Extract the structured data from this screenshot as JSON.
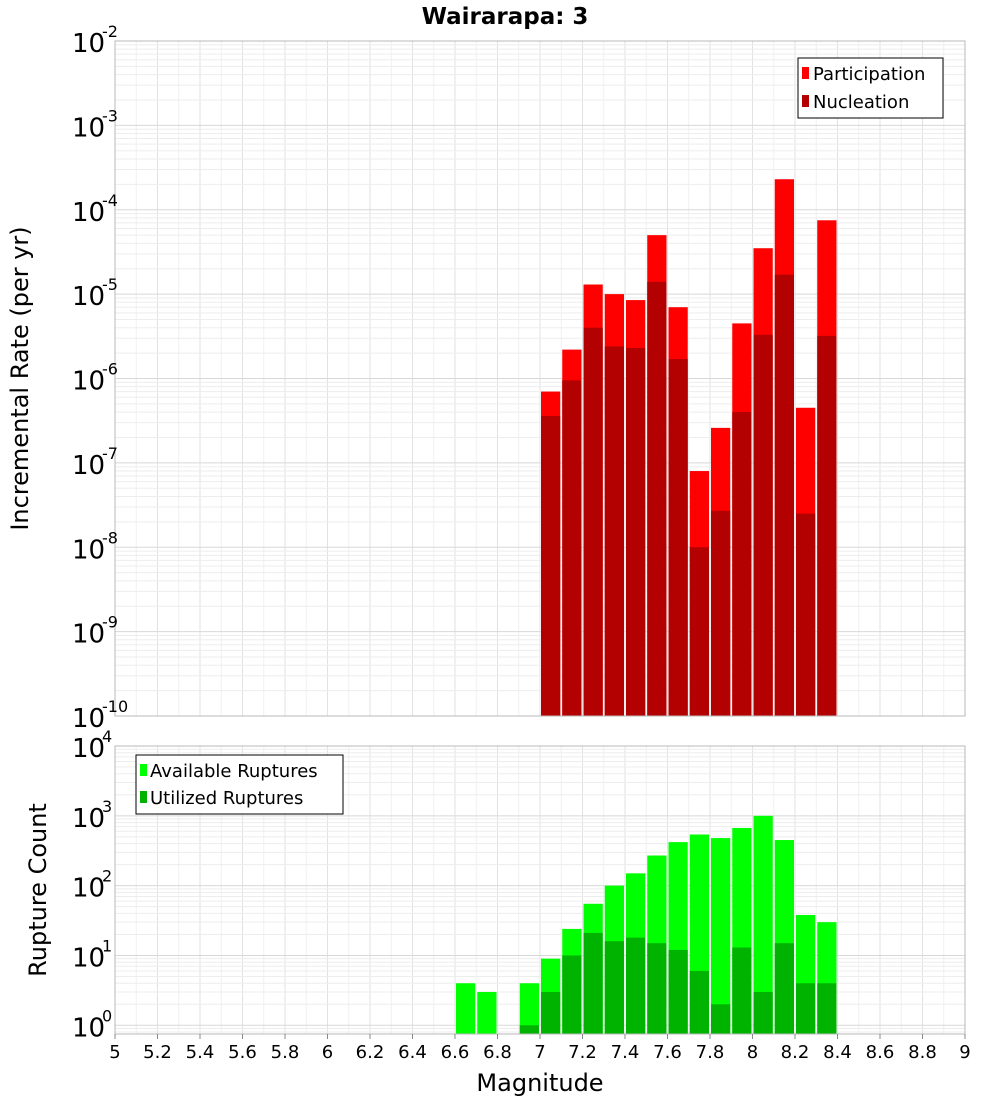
{
  "chart_data": [
    {
      "type": "bar",
      "title": "Wairarapa: 3",
      "xlabel": "Magnitude",
      "ylabel": "Incremental Rate (per yr)",
      "xlim": [
        5,
        9
      ],
      "ylim": [
        1e-10,
        0.01
      ],
      "yscale": "log",
      "grid": true,
      "legend_position": "top-right",
      "bin_width": 0.1,
      "x_ticks": [
        "5",
        "5.2",
        "5.4",
        "5.6",
        "5.8",
        "6",
        "6.2",
        "6.4",
        "6.6",
        "6.8",
        "7",
        "7.2",
        "7.4",
        "7.6",
        "7.8",
        "8",
        "8.2",
        "8.4",
        "8.6",
        "8.8",
        "9"
      ],
      "y_tick_exponents": [
        "-10",
        "-9",
        "-8",
        "-7",
        "-6",
        "-5",
        "-4",
        "-3",
        "-2"
      ],
      "x": [
        7.05,
        7.15,
        7.25,
        7.35,
        7.45,
        7.55,
        7.65,
        7.75,
        7.85,
        7.95,
        8.05,
        8.15,
        8.25,
        8.35
      ],
      "series": [
        {
          "name": "Participation",
          "color": "#ff0000",
          "values": [
            7e-07,
            2.2e-06,
            1.3e-05,
            1e-05,
            8.5e-06,
            5e-05,
            7e-06,
            8e-08,
            2.6e-07,
            4.5e-06,
            3.5e-05,
            0.00023,
            4.5e-07,
            7.5e-05
          ]
        },
        {
          "name": "Nucleation",
          "color": "#b30000",
          "values": [
            3.6e-07,
            9.5e-07,
            4e-06,
            2.4e-06,
            2.3e-06,
            1.4e-05,
            1.7e-06,
            1e-08,
            2.7e-08,
            4e-07,
            3.3e-06,
            1.7e-05,
            2.5e-08,
            3.2e-06
          ]
        }
      ]
    },
    {
      "type": "bar",
      "title": "",
      "xlabel": "Magnitude",
      "ylabel": "Rupture Count",
      "xlim": [
        5,
        9
      ],
      "ylim": [
        0.75,
        10000
      ],
      "yscale": "log",
      "grid": true,
      "legend_position": "top-left",
      "bin_width": 0.1,
      "y_tick_exponents": [
        "0",
        "1",
        "2",
        "3",
        "4"
      ],
      "x": [
        6.65,
        6.75,
        6.95,
        7.05,
        7.15,
        7.25,
        7.35,
        7.45,
        7.55,
        7.65,
        7.75,
        7.85,
        7.95,
        8.05,
        8.15,
        8.25,
        8.35
      ],
      "series": [
        {
          "name": "Available Ruptures",
          "color": "#00ff00",
          "values": [
            4,
            3,
            4,
            9,
            24,
            55,
            100,
            150,
            270,
            420,
            540,
            480,
            670,
            1000,
            450,
            38,
            30
          ]
        },
        {
          "name": "Utilized Ruptures",
          "color": "#00b300",
          "values": [
            null,
            null,
            1,
            3,
            10,
            21,
            16,
            18,
            15,
            12,
            6,
            2,
            13,
            3,
            15,
            4,
            4
          ]
        }
      ]
    }
  ]
}
